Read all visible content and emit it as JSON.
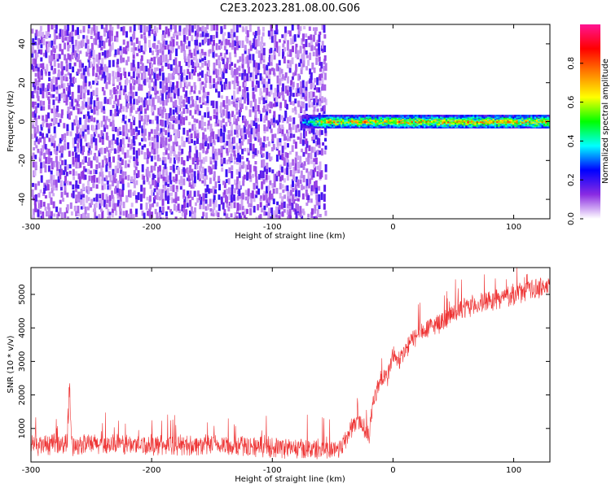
{
  "title": "C2E3.2023.281.08.00.G06",
  "chart_data": [
    {
      "type": "heatmap",
      "title": "",
      "xlabel": "Height of straight line (km)",
      "ylabel": "Frequency (Hz)",
      "xlim": [
        -300,
        130
      ],
      "ylim": [
        -50,
        50
      ],
      "xticks": [
        -300,
        -200,
        -100,
        0,
        100
      ],
      "yticks": [
        -40,
        -20,
        0,
        20,
        40
      ],
      "colorbar": {
        "label": "Normalized spectral amplitude",
        "range": [
          0.0,
          1.0
        ],
        "ticks": [
          0.0,
          0.2,
          0.4,
          0.6,
          0.8
        ],
        "colors": [
          "#ffffff",
          "#8a2be2",
          "#0000ff",
          "#00ffff",
          "#00ff00",
          "#ffff00",
          "#ff8000",
          "#ff0000",
          "#ff1493"
        ]
      },
      "regions": [
        {
          "x_range": [
            -300,
            -58
          ],
          "freq_range": [
            -50,
            50
          ],
          "amplitude": 0.15,
          "pattern": "noise"
        },
        {
          "x_range": [
            -75,
            130
          ],
          "center_freq": 0,
          "half_width_hz": 3,
          "amplitude_range": [
            0.4,
            0.9
          ],
          "pattern": "tone"
        }
      ]
    },
    {
      "type": "line",
      "title": "",
      "xlabel": "Height of straight line (km)",
      "ylabel": "SNR (10 * v/v)",
      "xlim": [
        -300,
        130
      ],
      "ylim": [
        0,
        5800
      ],
      "xticks": [
        -300,
        -200,
        -100,
        0,
        100
      ],
      "yticks": [
        1000,
        2000,
        3000,
        4000,
        5000
      ],
      "series": [
        {
          "color": "#ee3333",
          "x": [
            -300,
            -280,
            -270,
            -268,
            -266,
            -250,
            -200,
            -150,
            -100,
            -80,
            -60,
            -50,
            -45,
            -40,
            -35,
            -30,
            -25,
            -22,
            -20,
            -18,
            -15,
            -10,
            -5,
            0,
            5,
            10,
            15,
            20,
            30,
            40,
            50,
            60,
            70,
            80,
            90,
            100,
            110,
            120,
            130
          ],
          "y": [
            500,
            520,
            550,
            2100,
            520,
            530,
            510,
            500,
            450,
            400,
            380,
            380,
            400,
            600,
            1000,
            1200,
            1100,
            900,
            700,
            1500,
            2000,
            2500,
            2500,
            3200,
            3000,
            3300,
            3600,
            3800,
            4000,
            4200,
            4400,
            4600,
            4700,
            4800,
            4900,
            5000,
            5100,
            5200,
            5250
          ],
          "noise_amplitude": 350
        }
      ]
    }
  ]
}
